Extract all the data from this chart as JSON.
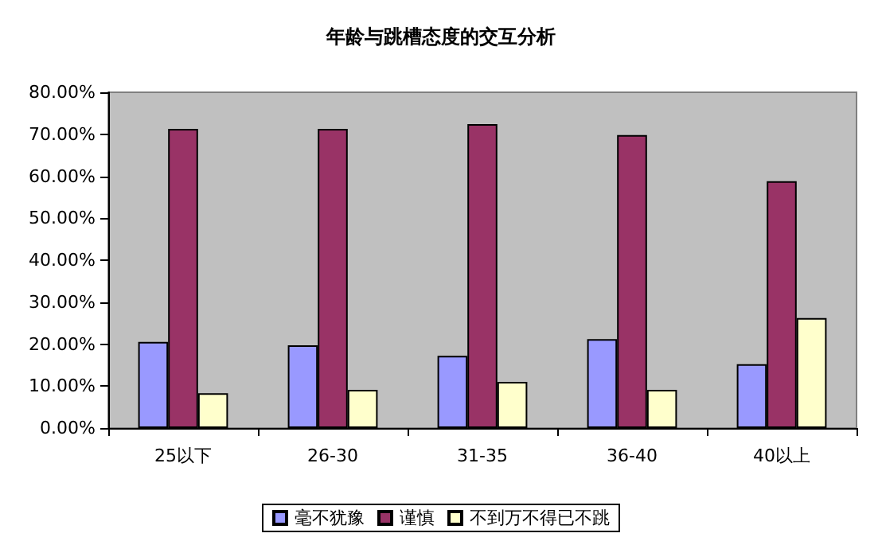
{
  "chart_data": {
    "type": "bar",
    "title": "年龄与跳槽态度的交互分析",
    "categories": [
      "25以下",
      "26-30",
      "31-35",
      "36-40",
      "40以上"
    ],
    "series": [
      {
        "name": "毫不犹豫",
        "color": "#9999ff",
        "values": [
          20.5,
          19.7,
          17.2,
          21.2,
          15.2
        ]
      },
      {
        "name": "谨慎",
        "color": "#993366",
        "values": [
          71.3,
          71.3,
          72.4,
          69.8,
          58.8
        ]
      },
      {
        "name": "不到万不得已不跳",
        "color": "#ffffcc",
        "values": [
          8.3,
          9.1,
          11.0,
          9.1,
          26.2
        ]
      }
    ],
    "ylim": [
      0,
      80
    ],
    "yticks": [
      {
        "value": 0,
        "label": "0.00%"
      },
      {
        "value": 10,
        "label": "10.00%"
      },
      {
        "value": 20,
        "label": "20.00%"
      },
      {
        "value": 30,
        "label": "30.00%"
      },
      {
        "value": 40,
        "label": "40.00%"
      },
      {
        "value": 50,
        "label": "50.00%"
      },
      {
        "value": 60,
        "label": "60.00%"
      },
      {
        "value": 70,
        "label": "70.00%"
      },
      {
        "value": 80,
        "label": "80.00%"
      }
    ],
    "grid": false,
    "legend": "bottom"
  }
}
